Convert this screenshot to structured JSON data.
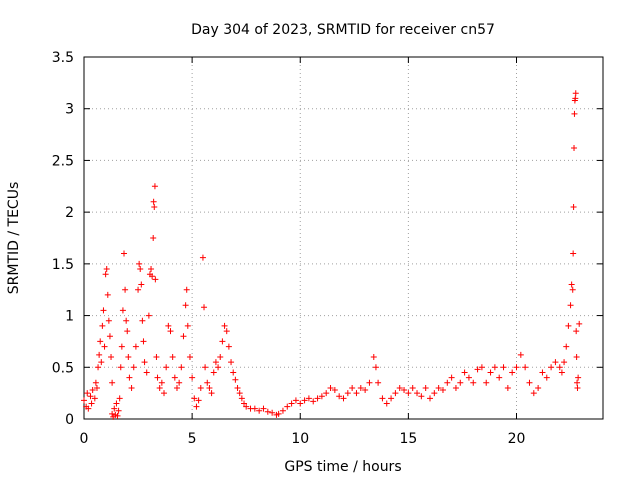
{
  "chart_data": {
    "type": "scatter",
    "title": "Day 304 of 2023, SRMTID for receiver cn57",
    "xlabel": "GPS time / hours",
    "ylabel": "SRMTID / TECUs",
    "xlim": [
      0,
      24
    ],
    "ylim": [
      0,
      3.5
    ],
    "xticks": [
      0,
      5,
      10,
      15,
      20
    ],
    "yticks": [
      0,
      0.5,
      1,
      1.5,
      2,
      2.5,
      3,
      3.5
    ],
    "xtick_labels": [
      "0",
      "5",
      "10",
      "15",
      "20"
    ],
    "ytick_labels": [
      "0",
      "0.5",
      "1",
      "1.5",
      "2",
      "2.5",
      "3",
      "3.5"
    ],
    "grid": true,
    "marker": "+",
    "series": [
      {
        "name": "SRMTID",
        "color": "#ff0000",
        "points": [
          [
            0.0,
            0.18
          ],
          [
            0.1,
            0.12
          ],
          [
            0.15,
            0.25
          ],
          [
            0.2,
            0.1
          ],
          [
            0.3,
            0.22
          ],
          [
            0.35,
            0.15
          ],
          [
            0.4,
            0.28
          ],
          [
            0.5,
            0.2
          ],
          [
            0.55,
            0.35
          ],
          [
            0.6,
            0.3
          ],
          [
            0.65,
            0.5
          ],
          [
            0.7,
            0.62
          ],
          [
            0.75,
            0.75
          ],
          [
            0.8,
            0.55
          ],
          [
            0.85,
            0.9
          ],
          [
            0.9,
            1.05
          ],
          [
            0.95,
            0.7
          ],
          [
            1.0,
            1.4
          ],
          [
            1.05,
            1.45
          ],
          [
            1.1,
            1.2
          ],
          [
            1.15,
            0.95
          ],
          [
            1.2,
            0.8
          ],
          [
            1.25,
            0.6
          ],
          [
            1.3,
            0.35
          ],
          [
            1.3,
            0.05
          ],
          [
            1.35,
            0.02
          ],
          [
            1.4,
            0.1
          ],
          [
            1.45,
            0.04
          ],
          [
            1.5,
            0.15
          ],
          [
            1.55,
            0.03
          ],
          [
            1.6,
            0.08
          ],
          [
            1.65,
            0.2
          ],
          [
            1.7,
            0.5
          ],
          [
            1.75,
            0.7
          ],
          [
            1.8,
            1.05
          ],
          [
            1.85,
            1.6
          ],
          [
            1.9,
            1.25
          ],
          [
            1.95,
            0.95
          ],
          [
            2.0,
            0.85
          ],
          [
            2.05,
            0.6
          ],
          [
            2.1,
            0.4
          ],
          [
            2.2,
            0.3
          ],
          [
            2.3,
            0.5
          ],
          [
            2.4,
            0.7
          ],
          [
            2.5,
            1.25
          ],
          [
            2.55,
            1.5
          ],
          [
            2.6,
            1.45
          ],
          [
            2.65,
            1.3
          ],
          [
            2.7,
            0.95
          ],
          [
            2.75,
            0.75
          ],
          [
            2.8,
            0.55
          ],
          [
            2.9,
            0.45
          ],
          [
            3.0,
            1.0
          ],
          [
            3.05,
            1.4
          ],
          [
            3.1,
            1.45
          ],
          [
            3.15,
            1.38
          ],
          [
            3.2,
            1.75
          ],
          [
            3.22,
            2.1
          ],
          [
            3.25,
            2.05
          ],
          [
            3.28,
            2.25
          ],
          [
            3.3,
            1.35
          ],
          [
            3.35,
            0.6
          ],
          [
            3.4,
            0.4
          ],
          [
            3.5,
            0.3
          ],
          [
            3.6,
            0.35
          ],
          [
            3.7,
            0.25
          ],
          [
            3.8,
            0.5
          ],
          [
            3.9,
            0.9
          ],
          [
            4.0,
            0.85
          ],
          [
            4.1,
            0.6
          ],
          [
            4.2,
            0.4
          ],
          [
            4.3,
            0.3
          ],
          [
            4.4,
            0.35
          ],
          [
            4.5,
            0.5
          ],
          [
            4.6,
            0.8
          ],
          [
            4.7,
            1.1
          ],
          [
            4.75,
            1.25
          ],
          [
            4.8,
            0.9
          ],
          [
            4.9,
            0.6
          ],
          [
            5.0,
            0.4
          ],
          [
            5.1,
            0.2
          ],
          [
            5.2,
            0.12
          ],
          [
            5.3,
            0.18
          ],
          [
            5.4,
            0.3
          ],
          [
            5.5,
            1.56
          ],
          [
            5.55,
            1.08
          ],
          [
            5.6,
            0.5
          ],
          [
            5.7,
            0.35
          ],
          [
            5.8,
            0.3
          ],
          [
            5.9,
            0.25
          ],
          [
            6.0,
            0.45
          ],
          [
            6.1,
            0.55
          ],
          [
            6.2,
            0.5
          ],
          [
            6.3,
            0.6
          ],
          [
            6.4,
            0.75
          ],
          [
            6.5,
            0.9
          ],
          [
            6.6,
            0.85
          ],
          [
            6.7,
            0.7
          ],
          [
            6.8,
            0.55
          ],
          [
            6.9,
            0.45
          ],
          [
            7.0,
            0.38
          ],
          [
            7.1,
            0.3
          ],
          [
            7.2,
            0.25
          ],
          [
            7.3,
            0.2
          ],
          [
            7.4,
            0.15
          ],
          [
            7.5,
            0.12
          ],
          [
            7.7,
            0.1
          ],
          [
            7.9,
            0.1
          ],
          [
            8.1,
            0.08
          ],
          [
            8.3,
            0.1
          ],
          [
            8.5,
            0.07
          ],
          [
            8.7,
            0.06
          ],
          [
            8.9,
            0.04
          ],
          [
            9.0,
            0.05
          ],
          [
            9.2,
            0.08
          ],
          [
            9.4,
            0.12
          ],
          [
            9.6,
            0.15
          ],
          [
            9.8,
            0.18
          ],
          [
            10.0,
            0.15
          ],
          [
            10.2,
            0.18
          ],
          [
            10.4,
            0.2
          ],
          [
            10.6,
            0.17
          ],
          [
            10.8,
            0.2
          ],
          [
            11.0,
            0.22
          ],
          [
            11.2,
            0.25
          ],
          [
            11.4,
            0.3
          ],
          [
            11.6,
            0.28
          ],
          [
            11.8,
            0.22
          ],
          [
            12.0,
            0.2
          ],
          [
            12.2,
            0.25
          ],
          [
            12.4,
            0.3
          ],
          [
            12.6,
            0.25
          ],
          [
            12.8,
            0.3
          ],
          [
            13.0,
            0.28
          ],
          [
            13.2,
            0.35
          ],
          [
            13.4,
            0.6
          ],
          [
            13.5,
            0.5
          ],
          [
            13.6,
            0.35
          ],
          [
            13.8,
            0.2
          ],
          [
            14.0,
            0.15
          ],
          [
            14.2,
            0.2
          ],
          [
            14.4,
            0.25
          ],
          [
            14.6,
            0.3
          ],
          [
            14.8,
            0.28
          ],
          [
            15.0,
            0.25
          ],
          [
            15.2,
            0.3
          ],
          [
            15.4,
            0.25
          ],
          [
            15.6,
            0.22
          ],
          [
            15.8,
            0.3
          ],
          [
            16.0,
            0.2
          ],
          [
            16.2,
            0.25
          ],
          [
            16.4,
            0.3
          ],
          [
            16.6,
            0.28
          ],
          [
            16.8,
            0.35
          ],
          [
            17.0,
            0.4
          ],
          [
            17.2,
            0.3
          ],
          [
            17.4,
            0.35
          ],
          [
            17.6,
            0.45
          ],
          [
            17.8,
            0.4
          ],
          [
            18.0,
            0.35
          ],
          [
            18.2,
            0.48
          ],
          [
            18.4,
            0.5
          ],
          [
            18.6,
            0.35
          ],
          [
            18.8,
            0.45
          ],
          [
            19.0,
            0.5
          ],
          [
            19.2,
            0.4
          ],
          [
            19.4,
            0.5
          ],
          [
            19.6,
            0.3
          ],
          [
            19.8,
            0.45
          ],
          [
            20.0,
            0.5
          ],
          [
            20.2,
            0.62
          ],
          [
            20.4,
            0.5
          ],
          [
            20.6,
            0.35
          ],
          [
            20.8,
            0.25
          ],
          [
            21.0,
            0.3
          ],
          [
            21.2,
            0.45
          ],
          [
            21.4,
            0.4
          ],
          [
            21.6,
            0.5
          ],
          [
            21.8,
            0.55
          ],
          [
            22.0,
            0.5
          ],
          [
            22.1,
            0.45
          ],
          [
            22.2,
            0.55
          ],
          [
            22.3,
            0.7
          ],
          [
            22.4,
            0.9
          ],
          [
            22.5,
            1.1
          ],
          [
            22.55,
            1.3
          ],
          [
            22.6,
            1.25
          ],
          [
            22.62,
            1.6
          ],
          [
            22.64,
            2.05
          ],
          [
            22.66,
            2.62
          ],
          [
            22.68,
            2.95
          ],
          [
            22.7,
            3.08
          ],
          [
            22.72,
            3.1
          ],
          [
            22.74,
            3.15
          ],
          [
            22.76,
            0.85
          ],
          [
            22.78,
            0.6
          ],
          [
            22.8,
            0.35
          ],
          [
            22.82,
            0.3
          ],
          [
            22.85,
            0.4
          ],
          [
            22.9,
            0.92
          ]
        ]
      }
    ]
  }
}
